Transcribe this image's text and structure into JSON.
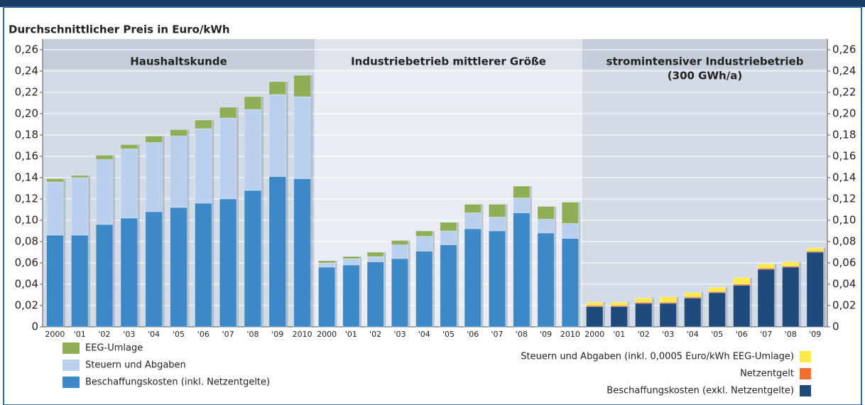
{
  "chart_data": [
    {
      "type": "bar",
      "stacked": true,
      "title": "Haushaltskunde",
      "ylabel": "Durchschnittlicher Preis in Euro/kWh",
      "categories": [
        "2000",
        "'01",
        "'02",
        "'03",
        "'04",
        "'05",
        "'06",
        "'07",
        "'08",
        "'09",
        "2010"
      ],
      "series": [
        {
          "name": "Beschaffungskosten (inkl. Netzentgelte)",
          "color": "#3d88c6",
          "values": [
            0.086,
            0.086,
            0.096,
            0.102,
            0.108,
            0.112,
            0.116,
            0.12,
            0.128,
            0.141,
            0.139
          ]
        },
        {
          "name": "Steuern und Abgaben",
          "color": "#b9d1ef",
          "values": [
            0.05,
            0.054,
            0.061,
            0.065,
            0.065,
            0.067,
            0.07,
            0.076,
            0.076,
            0.077,
            0.077
          ]
        },
        {
          "name": "EEG-Umlage",
          "color": "#8fae55",
          "values": [
            0.003,
            0.002,
            0.004,
            0.004,
            0.006,
            0.006,
            0.008,
            0.01,
            0.012,
            0.012,
            0.02
          ]
        }
      ],
      "ylim": [
        0,
        0.26
      ],
      "yticks": [
        0,
        {
          "value": 0.02,
          "label": "0,02"
        },
        {
          "value": 0.04,
          "label": "0,04"
        },
        {
          "value": 0.06,
          "label": "0,06"
        },
        {
          "value": 0.08,
          "label": "0,08"
        },
        {
          "value": 0.1,
          "label": "0,10"
        },
        {
          "value": 0.12,
          "label": "0,12"
        },
        {
          "value": 0.14,
          "label": "0,14"
        },
        {
          "value": 0.16,
          "label": "0,16"
        },
        {
          "value": 0.18,
          "label": "0,18"
        },
        {
          "value": 0.2,
          "label": "0,20"
        },
        {
          "value": 0.22,
          "label": "0,22"
        },
        {
          "value": 0.24,
          "label": "0,24"
        },
        {
          "value": 0.26,
          "label": "0,26"
        }
      ],
      "grid": true
    },
    {
      "type": "bar",
      "stacked": true,
      "title": "Industriebetrieb mittlerer Größe",
      "categories": [
        "2000",
        "'01",
        "'02",
        "'03",
        "'04",
        "'05",
        "'06",
        "'07",
        "'08",
        "'09",
        "2010"
      ],
      "series": [
        {
          "name": "Beschaffungskosten (inkl. Netzentgelte)",
          "color": "#3d88c6",
          "values": [
            0.056,
            0.058,
            0.061,
            0.064,
            0.071,
            0.077,
            0.092,
            0.09,
            0.107,
            0.088,
            0.083
          ]
        },
        {
          "name": "Steuern und Abgaben",
          "color": "#b9d1ef",
          "values": [
            0.004,
            0.006,
            0.005,
            0.013,
            0.014,
            0.013,
            0.015,
            0.013,
            0.014,
            0.013,
            0.014
          ]
        },
        {
          "name": "EEG-Umlage",
          "color": "#8fae55",
          "values": [
            0.002,
            0.002,
            0.004,
            0.004,
            0.005,
            0.008,
            0.008,
            0.012,
            0.011,
            0.012,
            0.02
          ]
        }
      ],
      "ylim": [
        0,
        0.26
      ]
    },
    {
      "type": "bar",
      "stacked": true,
      "title": "stromintensiver Industriebetrieb",
      "subtitle": "(300 GWh/a)",
      "categories": [
        "2000",
        "'01",
        "'02",
        "'03",
        "'04",
        "'05",
        "'06",
        "'07",
        "'08",
        "'09"
      ],
      "series": [
        {
          "name": "Beschaffungskosten (exkl. Netzentgelte)",
          "color": "#1e4a7c",
          "values": [
            0.019,
            0.019,
            0.022,
            0.022,
            0.027,
            0.032,
            0.039,
            0.054,
            0.056,
            0.07
          ]
        },
        {
          "name": "Netzentgelt",
          "color": "#f07030",
          "values": [
            0.001,
            0.001,
            0.001,
            0.001,
            0.001,
            0.001,
            0.001,
            0.001,
            0.001,
            0.001
          ]
        },
        {
          "name": "Steuern und Abgaben (inkl. 0,0005 Euro/kWh EEG-Umlage)",
          "color": "#ffe84a",
          "values": [
            0.003,
            0.003,
            0.004,
            0.005,
            0.004,
            0.004,
            0.006,
            0.004,
            0.004,
            0.003
          ]
        }
      ],
      "ylim": [
        0,
        0.26
      ],
      "yticks": [
        0,
        {
          "value": 0.02,
          "label": "0,02"
        },
        {
          "value": 0.04,
          "label": "0,04"
        },
        {
          "value": 0.06,
          "label": "0,06"
        },
        {
          "value": 0.08,
          "label": "0,08"
        },
        {
          "value": 0.1,
          "label": "0,10"
        },
        {
          "value": 0.12,
          "label": "0,12"
        },
        {
          "value": 0.14,
          "label": "0,14"
        },
        {
          "value": 0.16,
          "label": "0,16"
        },
        {
          "value": 0.18,
          "label": "0,18"
        },
        {
          "value": 0.2,
          "label": "0,20"
        },
        {
          "value": 0.22,
          "label": "0,22"
        },
        {
          "value": 0.24,
          "label": "0,24"
        },
        {
          "value": 0.26,
          "label": "0,26"
        }
      ]
    }
  ]
}
